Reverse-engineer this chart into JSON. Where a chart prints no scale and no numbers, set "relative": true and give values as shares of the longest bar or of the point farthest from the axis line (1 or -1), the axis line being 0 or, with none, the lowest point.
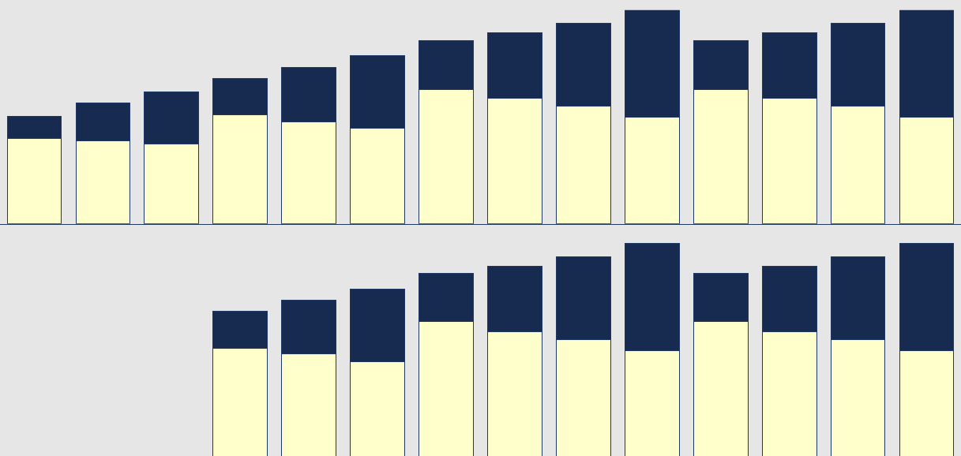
{
  "chart_data": [
    {
      "type": "bar",
      "stacked": true,
      "relative": true,
      "categories": [
        null,
        null,
        null,
        null,
        null,
        null,
        null,
        null,
        null,
        null,
        null,
        null,
        null,
        null
      ],
      "series": [
        {
          "color": "#ffffcc",
          "values": [
            0.399,
            0.387,
            0.373,
            0.509,
            0.476,
            0.446,
            0.627,
            0.587,
            0.55,
            0.498,
            0.627,
            0.587,
            0.55,
            0.498
          ]
        },
        {
          "color": "#172b50",
          "values": [
            0.103,
            0.177,
            0.244,
            0.17,
            0.255,
            0.339,
            0.229,
            0.306,
            0.387,
            0.502,
            0.229,
            0.306,
            0.387,
            0.502
          ]
        }
      ]
    },
    {
      "type": "bar",
      "stacked": true,
      "relative": true,
      "categories": [
        null,
        null,
        null,
        null,
        null,
        null,
        null,
        null,
        null,
        null,
        null,
        null,
        null,
        null
      ],
      "series": [
        {
          "color": "#ffffcc",
          "values": [
            null,
            null,
            null,
            0.507,
            0.478,
            0.441,
            0.63,
            0.585,
            0.548,
            0.496,
            0.63,
            0.585,
            0.548,
            0.496
          ]
        },
        {
          "color": "#172b50",
          "values": [
            null,
            null,
            null,
            0.174,
            0.252,
            0.344,
            0.226,
            0.307,
            0.389,
            0.504,
            0.226,
            0.307,
            0.389,
            0.504
          ]
        }
      ]
    }
  ]
}
